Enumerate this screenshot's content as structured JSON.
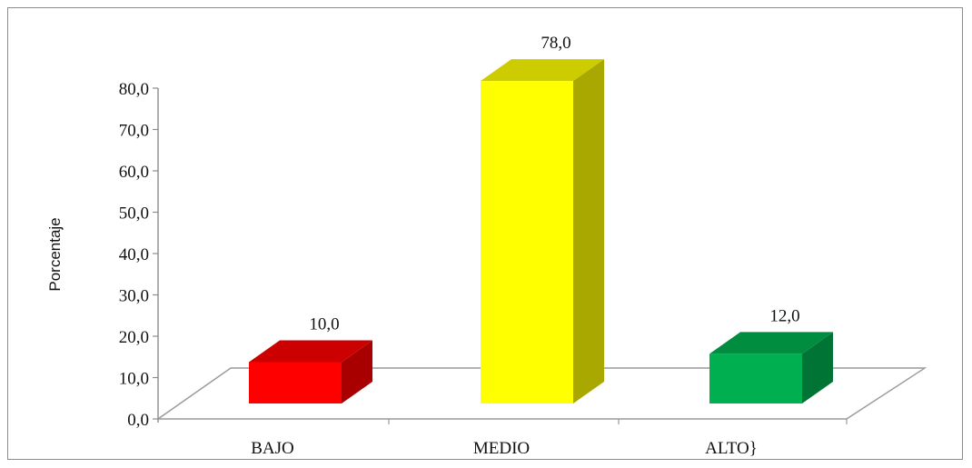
{
  "chart_data": {
    "type": "bar",
    "title": "",
    "xlabel": "",
    "ylabel": "Porcentaje",
    "categories": [
      "BAJO",
      "MEDIO",
      "ALTO}"
    ],
    "values": [
      10.0,
      78.0,
      12.0
    ],
    "data_labels": [
      "10,0",
      "78,0",
      "12,0"
    ],
    "ylim": [
      0,
      80
    ],
    "yticks": [
      "0,0",
      "10,0",
      "20,0",
      "30,0",
      "40,0",
      "50,0",
      "60,0",
      "70,0",
      "80,0"
    ],
    "grid": false,
    "legend": "none",
    "style": "3d-column",
    "colors": {
      "BAJO": "#ff0000",
      "MEDIO": "#ffff00",
      "ALTO}": "#00b050"
    }
  }
}
